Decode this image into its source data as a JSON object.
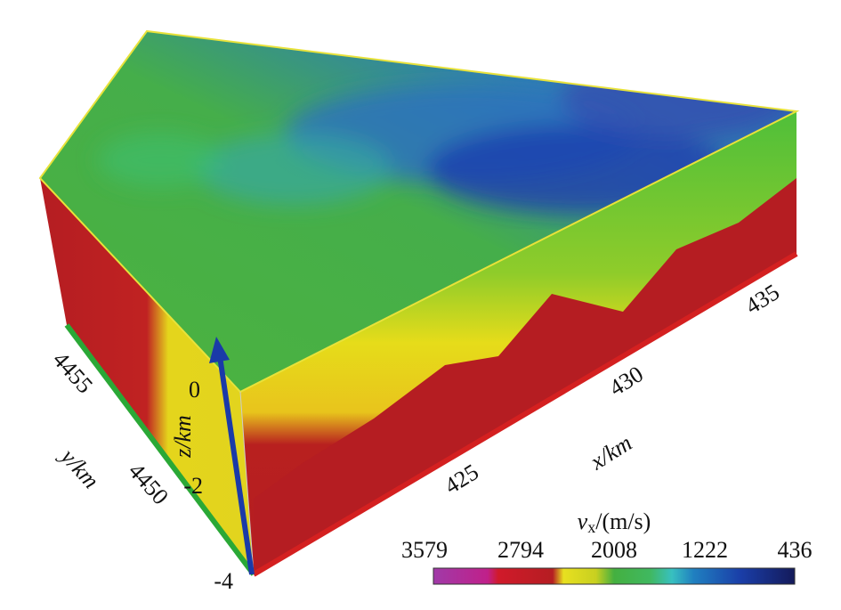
{
  "axes": {
    "x": {
      "label": "x/km",
      "ticks": [
        "425",
        "430",
        "435"
      ]
    },
    "y": {
      "label": "y/km",
      "ticks": [
        "4455",
        "4450"
      ]
    },
    "z": {
      "label": "z/km",
      "ticks": [
        "0",
        "-2",
        "-4"
      ]
    }
  },
  "colorbar": {
    "title": {
      "symbol": "v",
      "subscript": "x",
      "unit": "/(m/s)"
    },
    "ticks": [
      "3579",
      "2794",
      "2008",
      "1222",
      "436"
    ]
  }
}
